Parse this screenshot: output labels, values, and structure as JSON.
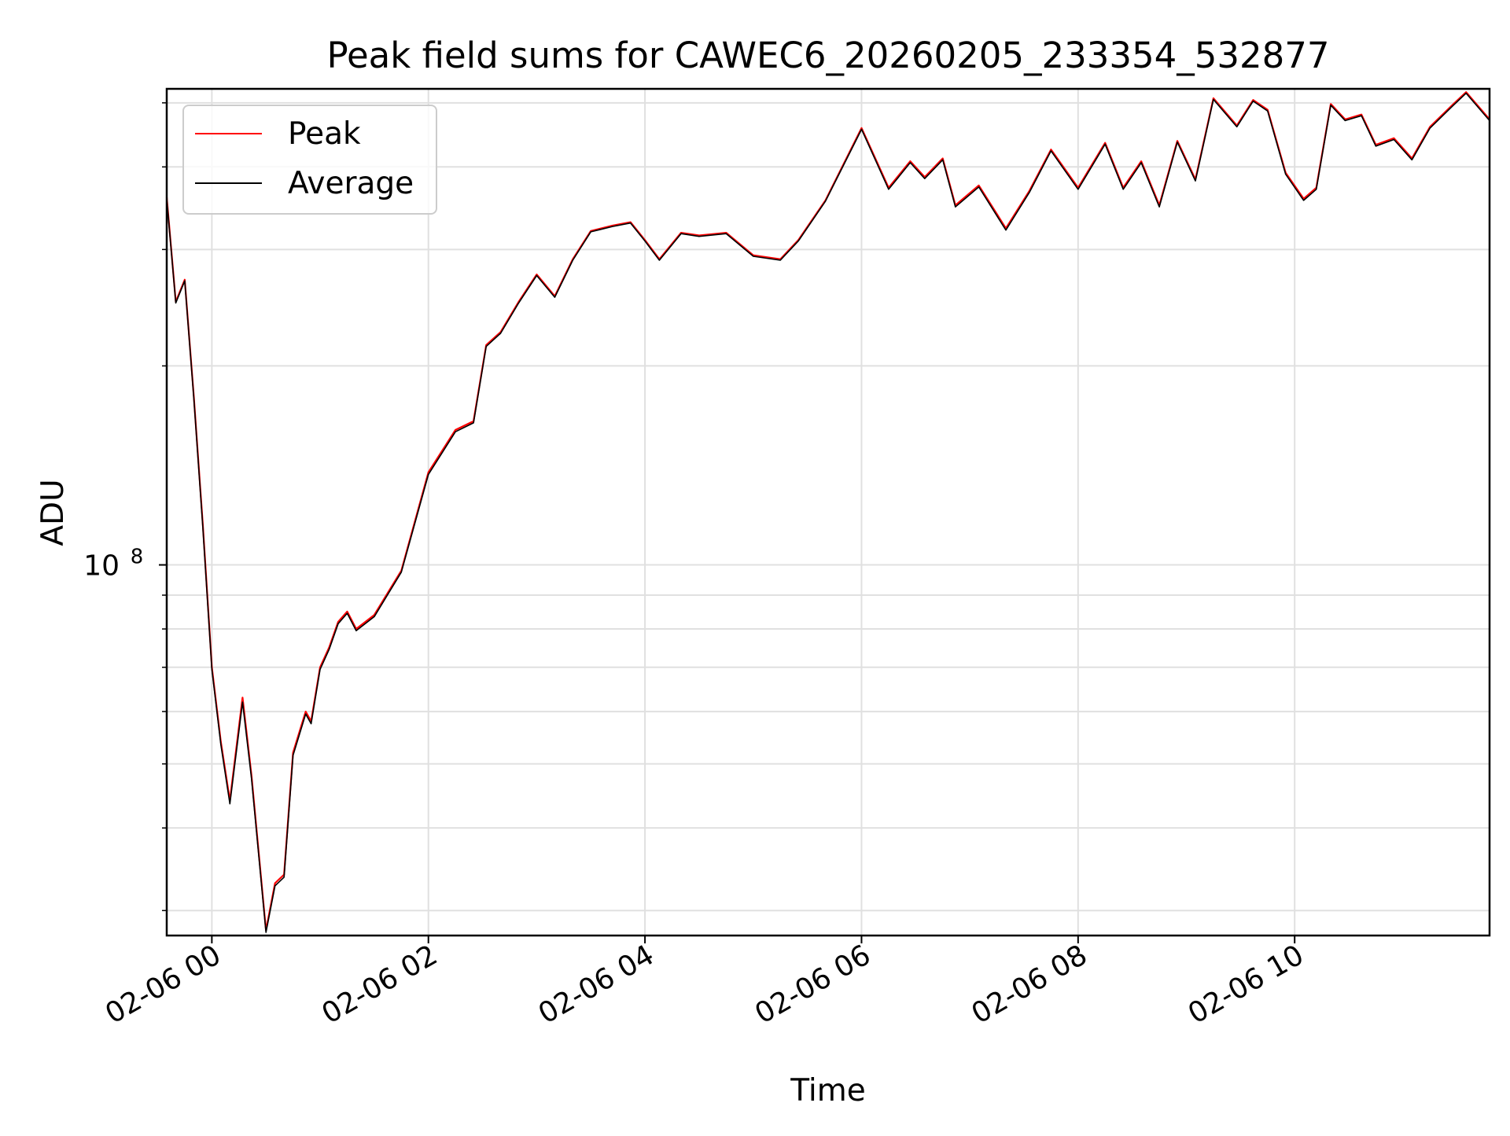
{
  "chart_data": {
    "type": "line",
    "title": "Peak field sums for CAWEC6_20260205_233354_532877",
    "xlabel": "Time",
    "ylabel": "ADU",
    "x_ticks": [
      "02-06 00",
      "02-06 02",
      "02-06 04",
      "02-06 06",
      "02-06 08",
      "02-06 10"
    ],
    "y_ticks": [
      {
        "value": 100000000,
        "base": "10",
        "exponent": "8"
      }
    ],
    "y_scale": "log",
    "xlim": [
      "2026-02-05 23:35",
      "2026-02-06 11:48"
    ],
    "ylim": [
      27500000,
      525000000
    ],
    "grid": true,
    "legend_position": "upper-left",
    "series": [
      {
        "name": "Peak",
        "color": "#ff0000",
        "x": [
          "2026-02-05 23:35",
          "2026-02-05 23:40",
          "2026-02-05 23:45",
          "2026-02-05 23:50",
          "2026-02-05 23:55",
          "2026-02-06 00:00",
          "2026-02-06 00:05",
          "2026-02-06 00:10",
          "2026-02-06 00:17",
          "2026-02-06 00:22",
          "2026-02-06 00:30",
          "2026-02-06 00:35",
          "2026-02-06 00:40",
          "2026-02-06 00:45",
          "2026-02-06 00:52",
          "2026-02-06 00:55",
          "2026-02-06 01:00",
          "2026-02-06 01:05",
          "2026-02-06 01:10",
          "2026-02-06 01:15",
          "2026-02-06 01:20",
          "2026-02-06 01:30",
          "2026-02-06 01:45",
          "2026-02-06 02:00",
          "2026-02-06 02:15",
          "2026-02-06 02:25",
          "2026-02-06 02:32",
          "2026-02-06 02:40",
          "2026-02-06 02:50",
          "2026-02-06 03:00",
          "2026-02-06 03:10",
          "2026-02-06 03:20",
          "2026-02-06 03:30",
          "2026-02-06 03:42",
          "2026-02-06 03:52",
          "2026-02-06 04:00",
          "2026-02-06 04:08",
          "2026-02-06 04:20",
          "2026-02-06 04:30",
          "2026-02-06 04:45",
          "2026-02-06 05:00",
          "2026-02-06 05:15",
          "2026-02-06 05:25",
          "2026-02-06 05:40",
          "2026-02-06 06:00",
          "2026-02-06 06:15",
          "2026-02-06 06:27",
          "2026-02-06 06:35",
          "2026-02-06 06:45",
          "2026-02-06 06:52",
          "2026-02-06 07:05",
          "2026-02-06 07:20",
          "2026-02-06 07:33",
          "2026-02-06 07:45",
          "2026-02-06 08:00",
          "2026-02-06 08:15",
          "2026-02-06 08:25",
          "2026-02-06 08:35",
          "2026-02-06 08:45",
          "2026-02-06 08:55",
          "2026-02-06 09:05",
          "2026-02-06 09:15",
          "2026-02-06 09:28",
          "2026-02-06 09:37",
          "2026-02-06 09:45",
          "2026-02-06 09:55",
          "2026-02-06 10:05",
          "2026-02-06 10:12",
          "2026-02-06 10:20",
          "2026-02-06 10:28",
          "2026-02-06 10:37",
          "2026-02-06 10:45",
          "2026-02-06 10:55",
          "2026-02-06 11:05",
          "2026-02-06 11:15",
          "2026-02-06 11:28",
          "2026-02-06 11:35",
          "2026-02-06 11:48"
        ],
        "values": [
          360000000,
          250000000,
          270000000,
          180000000,
          115000000,
          70000000,
          54000000,
          44000000,
          63000000,
          48000000,
          28000000,
          33000000,
          34000000,
          52000000,
          60000000,
          58000000,
          70000000,
          75000000,
          82000000,
          85000000,
          80000000,
          84000000,
          98000000,
          138000000,
          160000000,
          165000000,
          215000000,
          225000000,
          250000000,
          275000000,
          255000000,
          290000000,
          320000000,
          326000000,
          330000000,
          310000000,
          290000000,
          318000000,
          315000000,
          318000000,
          294000000,
          290000000,
          310000000,
          356000000,
          458000000,
          372000000,
          408000000,
          386000000,
          412000000,
          350000000,
          375000000,
          323000000,
          368000000,
          425000000,
          372000000,
          435000000,
          372000000,
          408000000,
          350000000,
          438000000,
          383000000,
          508000000,
          462000000,
          505000000,
          488000000,
          392000000,
          358000000,
          372000000,
          498000000,
          472000000,
          480000000,
          432000000,
          442000000,
          412000000,
          460000000,
          498000000,
          519000000,
          472000000
        ]
      },
      {
        "name": "Average",
        "color": "#000000",
        "x": [
          "2026-02-05 23:35",
          "2026-02-05 23:40",
          "2026-02-05 23:45",
          "2026-02-05 23:50",
          "2026-02-05 23:55",
          "2026-02-06 00:00",
          "2026-02-06 00:05",
          "2026-02-06 00:10",
          "2026-02-06 00:17",
          "2026-02-06 00:22",
          "2026-02-06 00:30",
          "2026-02-06 00:35",
          "2026-02-06 00:40",
          "2026-02-06 00:45",
          "2026-02-06 00:52",
          "2026-02-06 00:55",
          "2026-02-06 01:00",
          "2026-02-06 01:05",
          "2026-02-06 01:10",
          "2026-02-06 01:15",
          "2026-02-06 01:20",
          "2026-02-06 01:30",
          "2026-02-06 01:45",
          "2026-02-06 02:00",
          "2026-02-06 02:15",
          "2026-02-06 02:25",
          "2026-02-06 02:32",
          "2026-02-06 02:40",
          "2026-02-06 02:50",
          "2026-02-06 03:00",
          "2026-02-06 03:10",
          "2026-02-06 03:20",
          "2026-02-06 03:30",
          "2026-02-06 03:42",
          "2026-02-06 03:52",
          "2026-02-06 04:00",
          "2026-02-06 04:08",
          "2026-02-06 04:20",
          "2026-02-06 04:30",
          "2026-02-06 04:45",
          "2026-02-06 05:00",
          "2026-02-06 05:15",
          "2026-02-06 05:25",
          "2026-02-06 05:40",
          "2026-02-06 06:00",
          "2026-02-06 06:15",
          "2026-02-06 06:27",
          "2026-02-06 06:35",
          "2026-02-06 06:45",
          "2026-02-06 06:52",
          "2026-02-06 07:05",
          "2026-02-06 07:20",
          "2026-02-06 07:33",
          "2026-02-06 07:45",
          "2026-02-06 08:00",
          "2026-02-06 08:15",
          "2026-02-06 08:25",
          "2026-02-06 08:35",
          "2026-02-06 08:45",
          "2026-02-06 08:55",
          "2026-02-06 09:05",
          "2026-02-06 09:15",
          "2026-02-06 09:28",
          "2026-02-06 09:37",
          "2026-02-06 09:45",
          "2026-02-06 09:55",
          "2026-02-06 10:05",
          "2026-02-06 10:12",
          "2026-02-06 10:20",
          "2026-02-06 10:28",
          "2026-02-06 10:37",
          "2026-02-06 10:45",
          "2026-02-06 10:55",
          "2026-02-06 11:05",
          "2026-02-06 11:15",
          "2026-02-06 11:28",
          "2026-02-06 11:35",
          "2026-02-06 11:48"
        ],
        "values": [
          358000000,
          249000000,
          269000000,
          179000000,
          114000000,
          69500000,
          53500000,
          43500000,
          62000000,
          47500000,
          27800000,
          32700000,
          33700000,
          51500000,
          59500000,
          57500000,
          69500000,
          74500000,
          81500000,
          84500000,
          79500000,
          83500000,
          97500000,
          137000000,
          159000000,
          164000000,
          214000000,
          224000000,
          249000000,
          274000000,
          254000000,
          289000000,
          319000000,
          325000000,
          329000000,
          309000000,
          289000000,
          317000000,
          314000000,
          317000000,
          293000000,
          289000000,
          309000000,
          355000000,
          456000000,
          370000000,
          406000000,
          384000000,
          410000000,
          348000000,
          373000000,
          321000000,
          366000000,
          423000000,
          370000000,
          433000000,
          370000000,
          406000000,
          348000000,
          436000000,
          381000000,
          506000000,
          460000000,
          503000000,
          486000000,
          390000000,
          356000000,
          370000000,
          496000000,
          470000000,
          478000000,
          430000000,
          440000000,
          410000000,
          458000000,
          496000000,
          517000000,
          470000000
        ]
      }
    ]
  }
}
